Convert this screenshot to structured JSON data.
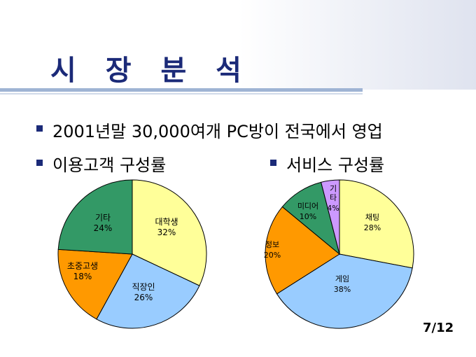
{
  "title": "시 장 분 석",
  "bullets": [
    "2001년말 30,000여개 PC방이 전국에서 영업",
    "이용고객 구성률",
    "서비스 구성률"
  ],
  "page_number": "7/12",
  "colors": {
    "title": "#1b2a78",
    "bullet": "#1b2a78",
    "rule": "#9fb4d4"
  },
  "chart_data": [
    {
      "type": "pie",
      "slices": [
        {
          "label": "대학생",
          "percent_label": "32%",
          "value": 32,
          "color": "#ffff99"
        },
        {
          "label": "직장인",
          "percent_label": "26%",
          "value": 26,
          "color": "#99ccff"
        },
        {
          "label": "초중고생",
          "percent_label": "18%",
          "value": 18,
          "color": "#ff9900"
        },
        {
          "label": "기타",
          "percent_label": "24%",
          "value": 24,
          "color": "#339966"
        }
      ]
    },
    {
      "type": "pie",
      "slices": [
        {
          "label": "채팅",
          "percent_label": "28%",
          "value": 28,
          "color": "#ffff99"
        },
        {
          "label": "게임",
          "percent_label": "38%",
          "value": 38,
          "color": "#99ccff"
        },
        {
          "label": "정보",
          "percent_label": "20%",
          "value": 20,
          "color": "#ff9900"
        },
        {
          "label": "미디어",
          "percent_label": "10%",
          "value": 10,
          "color": "#339966"
        },
        {
          "label": "기\n타",
          "percent_label": "4%",
          "value": 4,
          "color": "#cc99ff"
        }
      ]
    }
  ]
}
